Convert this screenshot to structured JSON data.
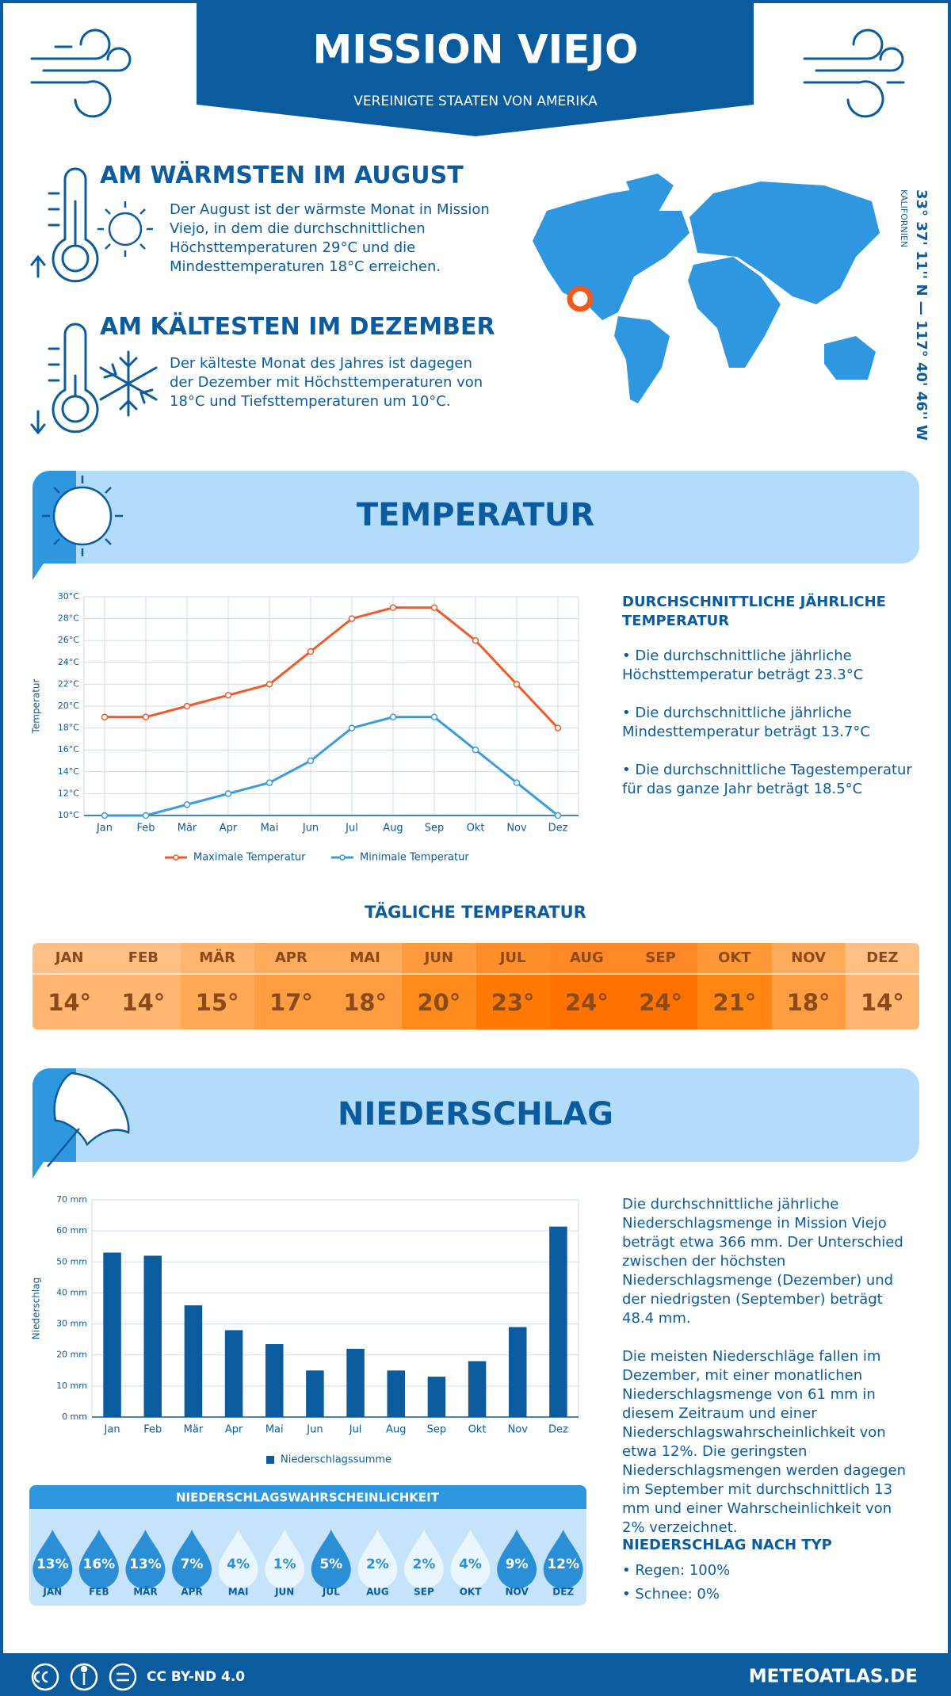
{
  "header": {
    "title": "MISSION VIEJO",
    "subtitle": "VEREINIGTE STAATEN VON AMERIKA"
  },
  "location": {
    "coordinates": "33° 37' 11'' N — 117° 40' 46'' W",
    "region": "KALIFORNIEN"
  },
  "warmest": {
    "title": "AM WÄRMSTEN IM AUGUST",
    "text": "Der August ist der wärmste Monat in Mission Viejo, in dem die durchschnittlichen Höchsttemperaturen 29°C und die Mindesttemperaturen 18°C erreichen."
  },
  "coldest": {
    "title": "AM KÄLTESTEN IM DEZEMBER",
    "text": "Der kälteste Monat des Jahres ist dagegen der Dezember mit Höchsttemperaturen von 18°C und Tiefsttemperaturen um 10°C."
  },
  "temperature_section": {
    "title": "TEMPERATUR",
    "summary_title": "DURCHSCHNITTLICHE JÄHRLICHE TEMPERATUR",
    "bullets": [
      "• Die durchschnittliche jährliche Höchsttemperatur beträgt 23.3°C",
      "• Die durchschnittliche jährliche Mindesttemperatur beträgt 13.7°C",
      "• Die durchschnittliche Tagestemperatur für das ganze Jahr beträgt 18.5°C"
    ]
  },
  "daily_temperature": {
    "title": "TÄGLICHE TEMPERATUR",
    "months": [
      "JAN",
      "FEB",
      "MÄR",
      "APR",
      "MAI",
      "JUN",
      "JUL",
      "AUG",
      "SEP",
      "OKT",
      "NOV",
      "DEZ"
    ],
    "values": [
      "14°",
      "14°",
      "15°",
      "17°",
      "18°",
      "20°",
      "23°",
      "24°",
      "24°",
      "21°",
      "18°",
      "14°"
    ],
    "colors": [
      "#ffb670",
      "#ffb670",
      "#ffa954",
      "#ff9d40",
      "#ff9d40",
      "#ff8a1c",
      "#ff7a05",
      "#ff7200",
      "#ff7200",
      "#ff8612",
      "#ff9d40",
      "#ffb670"
    ]
  },
  "precipitation_section": {
    "title": "NIEDERSCHLAG",
    "paragraphs": [
      "Die durchschnittliche jährliche Niederschlagsmenge in Mission Viejo beträgt etwa 366 mm. Der Unterschied zwischen der höchsten Niederschlagsmenge (Dezember) und der niedrigsten (September) beträgt 48.4 mm.",
      "Die meisten Niederschläge fallen im Dezember, mit einer monatlichen Niederschlagsmenge von 61 mm in diesem Zeitraum und einer Niederschlagswahrscheinlichkeit von etwa 12%. Die geringsten Niederschlagsmengen werden dagegen im September mit durchschnittlich 13 mm und einer Wahrscheinlichkeit von 2% verzeichnet."
    ],
    "type_title": "NIEDERSCHLAG NACH TYP",
    "type_bullets": [
      "• Regen: 100%",
      "• Schnee: 0%"
    ]
  },
  "precipitation_probability": {
    "title": "NIEDERSCHLAGSWAHRSCHEINLICHKEIT",
    "months": [
      "JAN",
      "FEB",
      "MÄR",
      "APR",
      "MAI",
      "JUN",
      "JUL",
      "AUG",
      "SEP",
      "OKT",
      "NOV",
      "DEZ"
    ],
    "values": [
      "13%",
      "16%",
      "13%",
      "7%",
      "4%",
      "1%",
      "5%",
      "2%",
      "2%",
      "4%",
      "9%",
      "12%"
    ],
    "colors": [
      "#2b8fd8",
      "#2b8fd8",
      "#2b8fd8",
      "#2b8fd8",
      "#eaf6fe",
      "#eaf6fe",
      "#2b8fd8",
      "#eaf6fe",
      "#eaf6fe",
      "#eaf6fe",
      "#2b8fd8",
      "#2b8fd8"
    ]
  },
  "footer": {
    "license": "CC BY-ND 4.0",
    "site": "METEOATLAS.DE"
  },
  "chart_data": [
    {
      "type": "line",
      "y_label": "Temperatur",
      "categories": [
        "Jan",
        "Feb",
        "Mär",
        "Apr",
        "Mai",
        "Jun",
        "Jul",
        "Aug",
        "Sep",
        "Okt",
        "Nov",
        "Dez"
      ],
      "series": [
        {
          "name": "Maximale Temperatur",
          "color": "#f05a28",
          "values": [
            19,
            19,
            20,
            21,
            22,
            25,
            28,
            29,
            29,
            26,
            22,
            18
          ]
        },
        {
          "name": "Minimale Temperatur",
          "color": "#3a9be0",
          "values": [
            10,
            10,
            11,
            12,
            13,
            15,
            18,
            19,
            19,
            16,
            13,
            10
          ]
        }
      ],
      "ylim": [
        10,
        30
      ],
      "yticks": [
        {
          "value": 10,
          "label": "10°C"
        },
        {
          "value": 12,
          "label": "12°C"
        },
        {
          "value": 14,
          "label": "14°C"
        },
        {
          "value": 16,
          "label": "16°C"
        },
        {
          "value": 18,
          "label": "18°C"
        },
        {
          "value": 20,
          "label": "20°C"
        },
        {
          "value": 22,
          "label": "22°C"
        },
        {
          "value": 24,
          "label": "24°C"
        },
        {
          "value": 26,
          "label": "26°C"
        },
        {
          "value": 28,
          "label": "28°C"
        },
        {
          "value": 30,
          "label": "30°C"
        }
      ],
      "grid": true,
      "legend": "bottom"
    },
    {
      "type": "bar",
      "y_label": "Niederschlag",
      "categories": [
        "Jan",
        "Feb",
        "Mär",
        "Apr",
        "Mai",
        "Jun",
        "Jul",
        "Aug",
        "Sep",
        "Okt",
        "Nov",
        "Dez"
      ],
      "series": [
        {
          "name": "Niederschlagssumme",
          "color": "#0b5c9e",
          "values": [
            53,
            52,
            36,
            28,
            23.5,
            15,
            22,
            15,
            13,
            18,
            29,
            61.4
          ]
        }
      ],
      "ylim": [
        0,
        70
      ],
      "yticks": [
        {
          "value": 0,
          "label": "0 mm"
        },
        {
          "value": 10,
          "label": "10 mm"
        },
        {
          "value": 20,
          "label": "20 mm"
        },
        {
          "value": 30,
          "label": "30 mm"
        },
        {
          "value": 40,
          "label": "40 mm"
        },
        {
          "value": 50,
          "label": "50 mm"
        },
        {
          "value": 60,
          "label": "60 mm"
        },
        {
          "value": 70,
          "label": "70 mm"
        }
      ],
      "grid": true,
      "legend": "bottom"
    }
  ]
}
